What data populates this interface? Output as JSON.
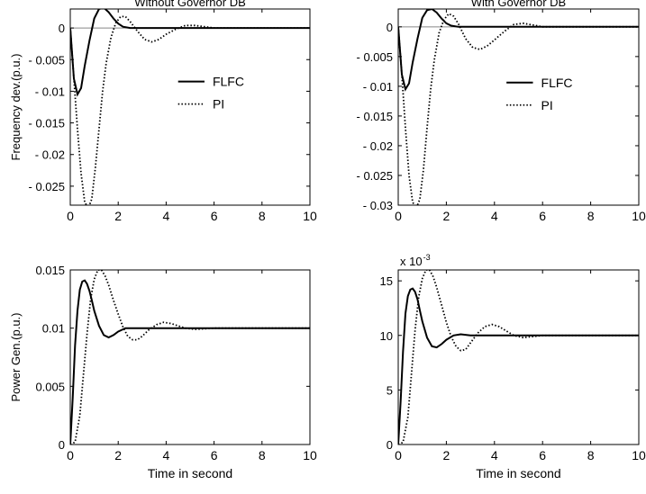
{
  "chart_data": [
    {
      "type": "line",
      "title": "Without Governor DB",
      "xlabel": "",
      "ylabel": "Frequency dev.(p.u.)",
      "xlim": [
        0,
        10
      ],
      "ylim": [
        -0.028,
        0.003
      ],
      "xticks": [
        0,
        2,
        4,
        6,
        8,
        10
      ],
      "xtick_labels": [
        "0",
        "2",
        "4",
        "6",
        "8",
        "10"
      ],
      "yticks": [
        0,
        -0.005,
        -0.01,
        -0.015,
        -0.02,
        -0.025
      ],
      "ytick_labels": [
        "0",
        "- 0.005",
        "- 0.01",
        "- 0.015",
        "- 0.02",
        "- 0.025"
      ],
      "exponent_label": "",
      "zero_line": true,
      "grid": false,
      "legend": {
        "position": "center-right",
        "entries": [
          "FLFC",
          "PI"
        ]
      },
      "series": [
        {
          "name": "FLFC",
          "style": "solid",
          "x": [
            0,
            0.15,
            0.3,
            0.45,
            0.6,
            0.8,
            1.0,
            1.2,
            1.4,
            1.6,
            1.8,
            2.0,
            2.2,
            2.5,
            3,
            4,
            6,
            8,
            10
          ],
          "y": [
            0,
            -0.008,
            -0.0105,
            -0.0095,
            -0.006,
            -0.002,
            0.0015,
            0.003,
            0.0032,
            0.0025,
            0.0015,
            0.0007,
            0.0002,
            0,
            0,
            0,
            0,
            0,
            0
          ]
        },
        {
          "name": "PI",
          "style": "dotted",
          "x": [
            0,
            0.15,
            0.3,
            0.45,
            0.6,
            0.75,
            0.9,
            1.05,
            1.2,
            1.35,
            1.5,
            1.7,
            1.9,
            2.1,
            2.3,
            2.5,
            2.8,
            3.1,
            3.4,
            3.7,
            4.0,
            4.4,
            4.8,
            5.2,
            5.6,
            6.0,
            7,
            8,
            10
          ],
          "y": [
            0,
            -0.008,
            -0.016,
            -0.023,
            -0.0275,
            -0.0285,
            -0.027,
            -0.022,
            -0.016,
            -0.01,
            -0.0055,
            -0.0015,
            0.0008,
            0.0018,
            0.0018,
            0.001,
            -0.0005,
            -0.0018,
            -0.0022,
            -0.0018,
            -0.001,
            -0.0002,
            0.0004,
            0.0004,
            0.0002,
            0,
            0,
            0,
            0
          ]
        }
      ]
    },
    {
      "type": "line",
      "title": "With Governor DB",
      "xlabel": "",
      "ylabel": "",
      "xlim": [
        0,
        10
      ],
      "ylim": [
        -0.03,
        0.003
      ],
      "xticks": [
        0,
        2,
        4,
        6,
        8,
        10
      ],
      "xtick_labels": [
        "0",
        "2",
        "4",
        "6",
        "8",
        "10"
      ],
      "yticks": [
        0,
        -0.005,
        -0.01,
        -0.015,
        -0.02,
        -0.025,
        -0.03
      ],
      "ytick_labels": [
        "0",
        "- 0.005",
        "- 0.01",
        "- 0.015",
        "- 0.02",
        "- 0.025",
        "- 0.03"
      ],
      "exponent_label": "",
      "zero_line": true,
      "grid": false,
      "legend": {
        "position": "center-right",
        "entries": [
          "FLFC",
          "PI"
        ]
      },
      "series": [
        {
          "name": "FLFC",
          "style": "solid",
          "x": [
            0,
            0.15,
            0.3,
            0.45,
            0.6,
            0.8,
            1.0,
            1.2,
            1.4,
            1.6,
            1.8,
            2.0,
            2.2,
            2.5,
            3,
            4,
            6,
            8,
            10
          ],
          "y": [
            0,
            -0.008,
            -0.0105,
            -0.0095,
            -0.006,
            -0.002,
            0.0015,
            0.0028,
            0.003,
            0.0024,
            0.0014,
            0.0006,
            0.0002,
            0,
            0,
            0,
            0,
            0,
            0
          ]
        },
        {
          "name": "PI",
          "style": "dotted",
          "x": [
            0,
            0.15,
            0.3,
            0.45,
            0.6,
            0.75,
            0.9,
            1.05,
            1.2,
            1.35,
            1.5,
            1.7,
            1.9,
            2.1,
            2.3,
            2.5,
            2.8,
            3.1,
            3.4,
            3.7,
            4.0,
            4.4,
            4.8,
            5.2,
            5.6,
            6.0,
            7,
            8,
            10
          ],
          "y": [
            0,
            -0.008,
            -0.017,
            -0.025,
            -0.0295,
            -0.0305,
            -0.029,
            -0.024,
            -0.017,
            -0.0105,
            -0.0055,
            -0.001,
            0.0012,
            0.0022,
            0.0018,
            0.0005,
            -0.002,
            -0.0035,
            -0.0038,
            -0.0032,
            -0.0022,
            -0.0008,
            0.0004,
            0.0006,
            0.0003,
            0,
            0,
            0,
            0
          ]
        }
      ]
    },
    {
      "type": "line",
      "title": "",
      "xlabel": "Time in second",
      "ylabel": "Power Gen.(p.u.)",
      "xlim": [
        0,
        10
      ],
      "ylim": [
        0,
        0.015
      ],
      "xticks": [
        0,
        2,
        4,
        6,
        8,
        10
      ],
      "xtick_labels": [
        "0",
        "2",
        "4",
        "6",
        "8",
        "10"
      ],
      "yticks": [
        0,
        0.005,
        0.01,
        0.015
      ],
      "ytick_labels": [
        "0",
        "0.005",
        "0.01",
        "0.015"
      ],
      "exponent_label": "",
      "zero_line": false,
      "grid": false,
      "legend": null,
      "series": [
        {
          "name": "FLFC",
          "style": "solid",
          "x": [
            0,
            0.1,
            0.2,
            0.3,
            0.4,
            0.5,
            0.6,
            0.7,
            0.8,
            0.9,
            1.0,
            1.2,
            1.4,
            1.6,
            1.8,
            2.0,
            2.3,
            2.6,
            3,
            4,
            6,
            8,
            10
          ],
          "y": [
            0,
            0.004,
            0.0085,
            0.0115,
            0.0133,
            0.014,
            0.0141,
            0.0138,
            0.0132,
            0.0124,
            0.0115,
            0.0102,
            0.0094,
            0.0092,
            0.0094,
            0.0097,
            0.01,
            0.01,
            0.01,
            0.01,
            0.01,
            0.01,
            0.01
          ]
        },
        {
          "name": "PI",
          "style": "dotted",
          "x": [
            0,
            0.2,
            0.4,
            0.55,
            0.7,
            0.85,
            1.0,
            1.15,
            1.3,
            1.45,
            1.6,
            1.8,
            2.0,
            2.2,
            2.4,
            2.6,
            2.8,
            3.0,
            3.3,
            3.6,
            3.9,
            4.2,
            4.5,
            4.8,
            5.2,
            6,
            7,
            8,
            10
          ],
          "y": [
            0,
            0.0002,
            0.0025,
            0.006,
            0.0095,
            0.0125,
            0.0142,
            0.015,
            0.015,
            0.0145,
            0.0137,
            0.0124,
            0.0112,
            0.0101,
            0.0093,
            0.009,
            0.009,
            0.0093,
            0.0099,
            0.0103,
            0.0105,
            0.0104,
            0.0102,
            0.01,
            0.0099,
            0.01,
            0.01,
            0.01,
            0.01
          ]
        }
      ]
    },
    {
      "type": "line",
      "title": "",
      "xlabel": "Time in second",
      "ylabel": "",
      "xlim": [
        0,
        10
      ],
      "ylim": [
        0,
        16
      ],
      "xticks": [
        0,
        2,
        4,
        6,
        8,
        10
      ],
      "xtick_labels": [
        "0",
        "2",
        "4",
        "6",
        "8",
        "10"
      ],
      "yticks": [
        0,
        5,
        10,
        15
      ],
      "ytick_labels": [
        "0",
        "5",
        "10",
        "15"
      ],
      "exponent_label": "x 10",
      "exponent_power": "-3",
      "zero_line": false,
      "grid": false,
      "legend": null,
      "series": [
        {
          "name": "FLFC",
          "style": "solid",
          "x": [
            0,
            0.1,
            0.2,
            0.3,
            0.4,
            0.5,
            0.6,
            0.7,
            0.8,
            0.9,
            1.0,
            1.2,
            1.4,
            1.6,
            1.8,
            2.0,
            2.3,
            2.6,
            3,
            4,
            6,
            8,
            10
          ],
          "y": [
            0,
            4,
            8.5,
            12,
            13.6,
            14.2,
            14.3,
            14,
            13.3,
            12.3,
            11.3,
            9.8,
            9,
            8.9,
            9.2,
            9.6,
            10,
            10.1,
            10,
            10,
            10,
            10,
            10
          ]
        },
        {
          "name": "PI",
          "style": "dotted",
          "x": [
            0,
            0.2,
            0.4,
            0.55,
            0.7,
            0.85,
            1.0,
            1.15,
            1.3,
            1.45,
            1.6,
            1.8,
            2.0,
            2.2,
            2.4,
            2.6,
            2.8,
            3.0,
            3.3,
            3.6,
            3.9,
            4.2,
            4.5,
            4.8,
            5.2,
            6,
            7,
            8,
            10
          ],
          "y": [
            0,
            0.2,
            2.5,
            6.5,
            10.5,
            13.5,
            15.2,
            16,
            16,
            15.4,
            14.4,
            12.8,
            11.2,
            9.9,
            9,
            8.6,
            8.7,
            9.3,
            10.2,
            10.8,
            11,
            10.8,
            10.4,
            10,
            9.8,
            10,
            10,
            10,
            10
          ]
        }
      ]
    }
  ]
}
